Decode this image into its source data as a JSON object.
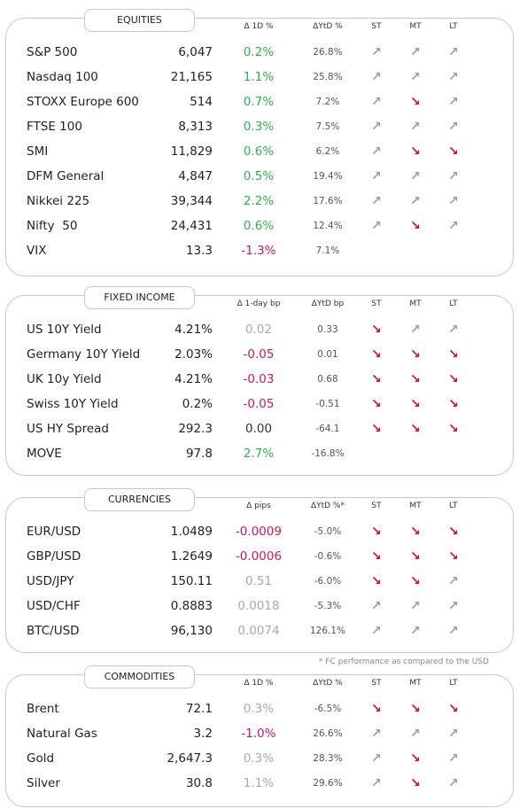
{
  "sections": [
    {
      "title": "EQUITIES",
      "headers": [
        "Δ 1D %",
        "ΔYtD %",
        "ST",
        "MT",
        "LT"
      ],
      "rows": [
        [
          "S&P 500",
          "6,047",
          "0.2%",
          "26.8%",
          "↗",
          "↗",
          "↗"
        ],
        [
          "Nasdaq 100",
          "21,165",
          "1.1%",
          "25.8%",
          "↗",
          "↗",
          "↗"
        ],
        [
          "STOXX Europe 600",
          "514",
          "0.7%",
          "7.2%",
          "↗",
          "↘",
          "↗"
        ],
        [
          "FTSE 100",
          "8,313",
          "0.3%",
          "7.5%",
          "↗",
          "↗",
          "↗"
        ],
        [
          "SMI",
          "11,829",
          "0.6%",
          "6.2%",
          "↗",
          "↘",
          "↘"
        ],
        [
          "DFM General",
          "4,847",
          "0.5%",
          "19.4%",
          "↗",
          "↗",
          "↗"
        ],
        [
          "Nikkei 225",
          "39,344",
          "2.2%",
          "17.6%",
          "↗",
          "↗",
          "↗"
        ],
        [
          "Nifty  50",
          "24,431",
          "0.6%",
          "12.4%",
          "↗",
          "↘",
          "↗"
        ],
        [
          "VIX",
          "13.3",
          "-1.3%",
          "7.1%"
        ]
      ],
      "change_colors": [
        "#2db04b",
        "#2db04b",
        "#2db04b",
        "#2db04b",
        "#2db04b",
        "#2db04b",
        "#2db04b",
        "#2db04b",
        "#c8175d"
      ]
    },
    {
      "title": "FIXED INCOME",
      "headers": [
        "Δ 1-day bp",
        "ΔYtD bp",
        "ST",
        "MT",
        "LT"
      ],
      "rows": [
        [
          "US 10Y Yield",
          "4.21%",
          "0.02",
          "0.33",
          "↘",
          "↗",
          "↗"
        ],
        [
          "Germany 10Y Yield",
          "2.03%",
          "-0.05",
          "0.01",
          "↘",
          "↘",
          "↘"
        ],
        [
          "UK 10y Yield",
          "4.21%",
          "-0.03",
          "0.68",
          "↘",
          "↘",
          "↘"
        ],
        [
          "Swiss 10Y Yield",
          "0.2%",
          "-0.05",
          "-0.51",
          "↘",
          "↘",
          "↘"
        ],
        [
          "US HY Spread",
          "292.3",
          "0.00",
          "-64.1",
          "↘",
          "↘",
          "↘"
        ],
        [
          "MOVE",
          "97.8",
          "2.7%",
          "-16.8%"
        ]
      ],
      "change_colors": [
        "#b0a8a0",
        "#c8175d",
        "#c8175d",
        "#c8175d",
        "#333333",
        "#2db04b"
      ]
    },
    {
      "title": "CURRENCIES",
      "headers": [
        "Δ pips",
        "ΔYtD %*",
        "ST",
        "MT",
        "LT"
      ],
      "rows": [
        [
          "EUR/USD",
          "1.0489",
          "-0.0009",
          "-5.0%",
          "↘",
          "↘",
          "↘"
        ],
        [
          "GBP/USD",
          "1.2649",
          "-0.0006",
          "-0.6%",
          "↘",
          "↘",
          "↘"
        ],
        [
          "USD/JPY",
          "150.11",
          "0.51",
          "-6.0%",
          "↘",
          "↘",
          "↗"
        ],
        [
          "USD/CHF",
          "0.8883",
          "0.0018",
          "-5.3%",
          "↗",
          "↗",
          "↗"
        ],
        [
          "BTC/USD",
          "96,130",
          "0.0074",
          "126.1%",
          "↗",
          "↗",
          "↗"
        ]
      ],
      "change_colors": [
        "#c8175d",
        "#c8175d",
        "#b0a8a0",
        "#b0a8a0",
        "#b0a8a0"
      ]
    },
    {
      "title": "COMMODITIES",
      "headers": [
        "Δ 1D %",
        "ΔYtD %",
        "ST",
        "MT",
        "LT"
      ],
      "rows": [
        [
          "Brent",
          "72.1",
          "0.3%",
          "-6.5%",
          "↘",
          "↘",
          "↘"
        ],
        [
          "Natural Gas",
          "3.2",
          "-1.0%",
          "26.6%",
          "↗",
          "↗",
          "↗"
        ],
        [
          "Gold",
          "2,647.3",
          "0.3%",
          "28.3%",
          "↗",
          "↘",
          "↗"
        ],
        [
          "Silver",
          "30.8",
          "1.1%",
          "29.6%",
          "↗",
          "↘",
          "↗"
        ]
      ],
      "change_colors": [
        "#b0a8a0",
        "#c8175d",
        "#b0a8a0",
        "#b0a8a0"
      ]
    }
  ],
  "footnote": "* FC performance as compared to the USD"
}
